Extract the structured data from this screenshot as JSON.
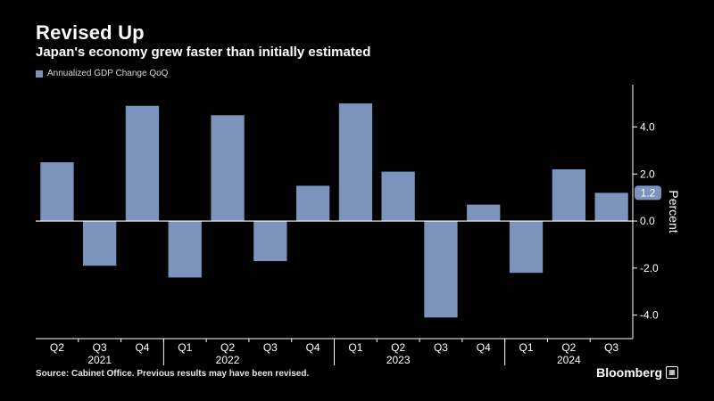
{
  "header": {
    "title": "Revised Up",
    "subtitle": "Japan's economy grew faster than initially estimated"
  },
  "footer": {
    "source": "Source: Cabinet Office. Previous results may have been revised.",
    "brand": "Bloomberg",
    "brand_icon": "bloomberg-terminal-icon"
  },
  "colors": {
    "bar": "#7b93bd",
    "background": "#000000",
    "text": "#ffffff",
    "last_value_label": "#7b93bd"
  },
  "chart_data": {
    "type": "bar",
    "title": "Revised Up",
    "subtitle": "Japan's economy grew faster than initially estimated",
    "legend": [
      "Annualized GDP Change QoQ"
    ],
    "legend_position": "top-left",
    "ylabel": "Percent",
    "ylim": [
      -5.0,
      5.8
    ],
    "yticks": [
      -4.0,
      -2.0,
      0.0,
      2.0,
      4.0
    ],
    "ytick_labels": [
      "-4.0",
      "-2.0",
      "0.0",
      "2.0",
      "4.0"
    ],
    "last_value_label": "1.2",
    "categories": [
      "Q2",
      "Q3",
      "Q4",
      "Q1",
      "Q2",
      "Q3",
      "Q4",
      "Q1",
      "Q2",
      "Q3",
      "Q4",
      "Q1",
      "Q2",
      "Q3"
    ],
    "years": [
      {
        "label": "2021",
        "category_index": 1
      },
      {
        "label": "2022",
        "category_index": 4
      },
      {
        "label": "2023",
        "category_index": 8
      },
      {
        "label": "2024",
        "category_index": 12
      }
    ],
    "series": [
      {
        "name": "Annualized GDP Change QoQ",
        "values": [
          2.5,
          -1.9,
          4.9,
          -2.4,
          4.5,
          -1.7,
          1.5,
          5.0,
          2.1,
          -4.1,
          0.7,
          -2.2,
          2.2,
          1.2
        ]
      }
    ]
  }
}
